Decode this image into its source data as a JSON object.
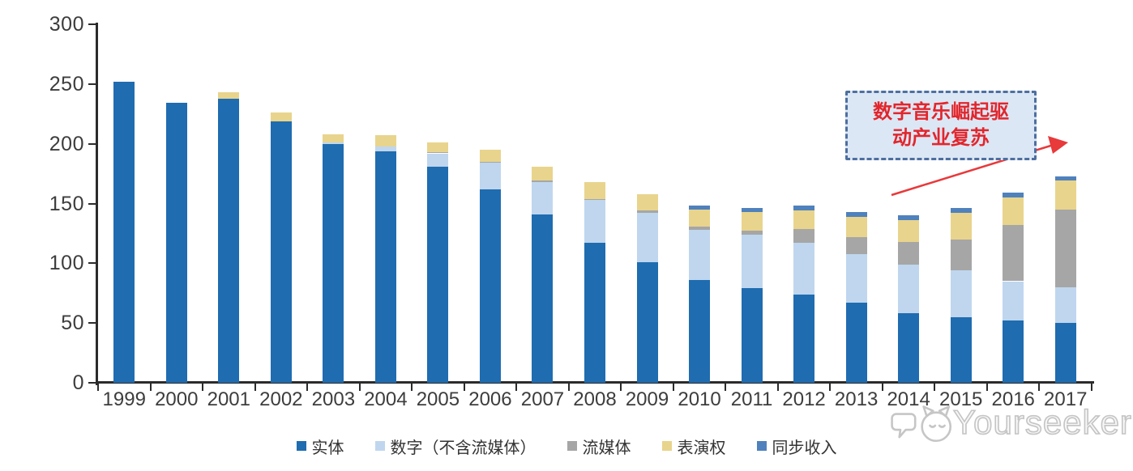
{
  "annotation": {
    "line1": "数字音乐崛起驱",
    "line2": "动产业复苏",
    "text_color": "#e2262c",
    "box_fill": "#dce7f5",
    "box_border": "#4e6f9f",
    "arrow_color": "#e8393b"
  },
  "watermark": {
    "text": "Yourseeker",
    "logo": "cat-bubble-logo",
    "color": "#c4c4c4"
  },
  "chart_data": {
    "type": "bar",
    "stacked": true,
    "title": "",
    "xlabel": "",
    "ylabel": "",
    "grid": false,
    "legend_position": "bottom",
    "ylim": [
      0,
      300
    ],
    "yticks": [
      0,
      50,
      100,
      150,
      200,
      250,
      300
    ],
    "categories": [
      "1999",
      "2000",
      "2001",
      "2002",
      "2003",
      "2004",
      "2005",
      "2006",
      "2007",
      "2008",
      "2009",
      "2010",
      "2011",
      "2012",
      "2013",
      "2014",
      "2015",
      "2016",
      "2017"
    ],
    "series": [
      {
        "name": "实体",
        "key": "physical",
        "color": "#1F6CB0",
        "values": [
          252,
          234,
          238,
          219,
          200,
          194,
          181,
          162,
          141,
          117,
          101,
          86,
          79,
          74,
          67,
          58,
          55,
          52,
          50
        ]
      },
      {
        "name": "数字（不含流媒体）",
        "key": "digital-excl-streaming",
        "color": "#BFD6EE",
        "values": [
          0,
          0,
          0,
          0,
          1,
          4,
          11,
          22,
          27,
          36,
          41,
          42,
          45,
          43,
          41,
          41,
          39,
          33,
          30
        ]
      },
      {
        "name": "流媒体",
        "key": "streaming",
        "color": "#A6A6A6",
        "values": [
          0,
          0,
          0,
          0,
          0,
          0,
          1,
          1,
          1,
          1,
          2,
          3,
          3,
          12,
          14,
          19,
          26,
          47,
          65
        ]
      },
      {
        "name": "表演权",
        "key": "performance-rights",
        "color": "#E8D48C",
        "values": [
          0,
          0,
          5,
          7,
          7,
          9,
          8,
          10,
          12,
          14,
          14,
          14,
          16,
          15,
          17,
          18,
          22,
          23,
          24
        ]
      },
      {
        "name": "同步收入",
        "key": "sync-revenue",
        "color": "#4F81BD",
        "values": [
          0,
          0,
          0,
          0,
          0,
          0,
          0,
          0,
          0,
          0,
          0,
          3,
          3,
          4,
          4,
          4,
          4,
          4,
          4
        ]
      }
    ]
  }
}
